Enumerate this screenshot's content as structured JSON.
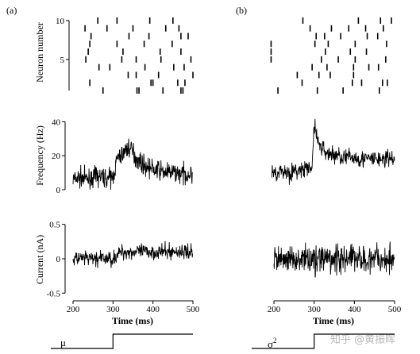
{
  "panels": [
    {
      "label": "(a)"
    },
    {
      "label": "(b)"
    }
  ],
  "ylabels": {
    "raster": "Neuron number",
    "frequency": "Frequency (Hz)",
    "current": "Current (nA)"
  },
  "xlabel": "Time (ms)",
  "step_labels": {
    "left": "μ",
    "right": "σ2"
  },
  "watermark": "知乎 @黄振晖",
  "chart_data": [
    {
      "panel": "(a)",
      "type": "raster",
      "ylabel": "Neuron number",
      "yticks": [
        5,
        10
      ],
      "xlim": [
        200,
        500
      ],
      "ylim": [
        0.5,
        10.5
      ],
      "neurons": [
        1,
        2,
        3,
        4,
        5,
        6,
        7,
        8,
        9,
        10
      ],
      "spikes": [
        [
          275,
          360,
          365,
          425,
          470,
          475
        ],
        [
          242,
          395,
          400,
          462,
          480
        ],
        [
          338,
          358,
          414,
          500
        ],
        [
          265,
          292,
          380,
          452,
          478
        ],
        [
          232,
          322,
          358,
          420,
          495
        ],
        [
          238,
          325,
          418,
          470
        ],
        [
          242,
          310,
          378,
          448
        ],
        [
          245,
          340,
          390,
          470,
          488
        ],
        [
          230,
          285,
          350,
          432,
          465
        ],
        [
          262,
          310,
          392,
          450
        ]
      ]
    },
    {
      "panel": "(a)",
      "type": "line",
      "ylabel": "Frequency (Hz)",
      "yticks": [
        0,
        20,
        40
      ],
      "ylim": [
        0,
        42
      ],
      "xlim": [
        200,
        500
      ],
      "x": [
        200,
        220,
        240,
        260,
        280,
        300,
        310,
        320,
        330,
        340,
        350,
        360,
        380,
        400,
        420,
        440,
        460,
        480,
        500
      ],
      "values": [
        6,
        7,
        6,
        8,
        7,
        7,
        18,
        20,
        23,
        25,
        22,
        18,
        14,
        12,
        11,
        10,
        10,
        9,
        9
      ]
    },
    {
      "panel": "(a)",
      "type": "line",
      "ylabel": "Current (nA)",
      "yticks": [
        -0.5,
        0,
        0.5
      ],
      "ylim": [
        -0.52,
        0.52
      ],
      "xlim": [
        200,
        500
      ],
      "x": [
        200,
        240,
        280,
        300,
        320,
        360,
        400,
        440,
        480,
        500
      ],
      "values": [
        0.0,
        0.0,
        0.0,
        0.0,
        0.1,
        0.1,
        0.1,
        0.1,
        0.1,
        0.1
      ]
    },
    {
      "panel": "(a)",
      "type": "step",
      "label": "μ",
      "xlabel": "Time (ms)",
      "xticks": [
        200,
        300,
        400,
        500
      ],
      "x": [
        200,
        300,
        300,
        500
      ],
      "values": [
        0,
        0,
        1,
        1
      ]
    },
    {
      "panel": "(b)",
      "type": "raster",
      "xlim": [
        200,
        500
      ],
      "ylim": [
        0.5,
        10.5
      ],
      "neurons": [
        1,
        2,
        3,
        4,
        5,
        6,
        7,
        8,
        9,
        10
      ],
      "spikes": [
        [
          210,
          308,
          372,
          462
        ],
        [
          270,
          395,
          418,
          470,
          482
        ],
        [
          258,
          312,
          340,
          398
        ],
        [
          295,
          332,
          398,
          436,
          460
        ],
        [
          193,
          318,
          360,
          402,
          478
        ],
        [
          193,
          328,
          390,
          430
        ],
        [
          193,
          302,
          335,
          402,
          480
        ],
        [
          305,
          326,
          366,
          432,
          458
        ],
        [
          290,
          343,
          386,
          428,
          472
        ],
        [
          272,
          410,
          465,
          492
        ]
      ]
    },
    {
      "panel": "(b)",
      "type": "line",
      "ylim": [
        0,
        42
      ],
      "xlim": [
        200,
        500
      ],
      "x": [
        195,
        220,
        240,
        260,
        280,
        295,
        300,
        305,
        310,
        320,
        330,
        340,
        360,
        380,
        400,
        420,
        440,
        460,
        480,
        500
      ],
      "values": [
        10,
        11,
        10,
        11,
        12,
        12,
        40,
        33,
        28,
        24,
        22,
        21,
        20,
        19,
        19,
        18,
        18,
        18,
        18,
        18
      ]
    },
    {
      "panel": "(b)",
      "type": "line",
      "ylim": [
        -0.52,
        0.52
      ],
      "xlim": [
        200,
        500
      ],
      "x": [
        200,
        250,
        300,
        350,
        400,
        450,
        500
      ],
      "values": [
        0,
        0,
        0,
        0,
        0,
        0,
        0
      ]
    },
    {
      "panel": "(b)",
      "type": "step",
      "label": "σ2",
      "xlabel": "Time (ms)",
      "xticks": [
        200,
        300,
        400,
        500
      ],
      "x": [
        200,
        300,
        300,
        500
      ],
      "values": [
        0,
        0,
        1,
        1
      ]
    }
  ]
}
